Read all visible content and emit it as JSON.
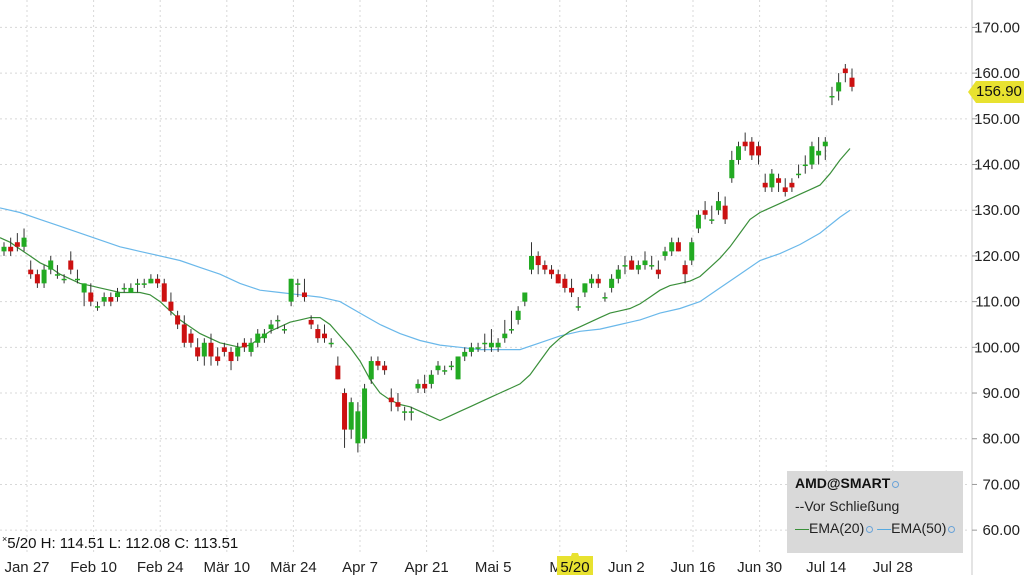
{
  "chart_data": {
    "type": "candlestick",
    "symbol": "AMD@SMART",
    "x_tick_labels": [
      "Jan 27",
      "Feb 10",
      "Feb 24",
      "Mär 10",
      "Mär 24",
      "Apr 7",
      "Apr 21",
      "Mai 5",
      "Ma",
      "Jun 2",
      "Jun 16",
      "Jun 30",
      "Jul 14",
      "Jul 28"
    ],
    "cursor_x_label": "5/20",
    "y_tick_labels": [
      "170.00",
      "160.00",
      "150.00",
      "140.00",
      "130.00",
      "120.00",
      "110.00",
      "100.00",
      "90.00",
      "80.00",
      "70.00",
      "60.00"
    ],
    "ylim": [
      55,
      176
    ],
    "last_price_label": "156.90",
    "ohlc_readout": "5/20 H: 114.51 L: 112.08 C: 113.51",
    "legend": {
      "title": "AMD@SMART",
      "line2": "--Vor Schließung",
      "ema20": "EMA(20)",
      "ema50": "EMA(50)"
    },
    "colors": {
      "up": "#22aa22",
      "down": "#cc1111",
      "ema20": "#3a8f3a",
      "ema50": "#6ab8ea",
      "grid": "#d8d8d8",
      "price_tag": "#e8e230"
    },
    "candles": [
      [
        121,
        123,
        120,
        122
      ],
      [
        122,
        124,
        120,
        121
      ],
      [
        123,
        125,
        121,
        122
      ],
      [
        122,
        126,
        121,
        124
      ],
      [
        117,
        119,
        115,
        116
      ],
      [
        116,
        117,
        113,
        114
      ],
      [
        114,
        118,
        113,
        117
      ],
      [
        117,
        120,
        116,
        119
      ],
      [
        116,
        118,
        115,
        116
      ],
      [
        115,
        116,
        114,
        115
      ],
      [
        119,
        121,
        116,
        117
      ],
      [
        115,
        117,
        114,
        115
      ],
      [
        112,
        114,
        109,
        114
      ],
      [
        112,
        114,
        109,
        110
      ],
      [
        109,
        110,
        108,
        109
      ],
      [
        110,
        112,
        109,
        111
      ],
      [
        111,
        112,
        109,
        110
      ],
      [
        111,
        113,
        110,
        112
      ],
      [
        113,
        114,
        112,
        113
      ],
      [
        112,
        114,
        112,
        113
      ],
      [
        114,
        115,
        112,
        114
      ],
      [
        114,
        115,
        113,
        114
      ],
      [
        114,
        116,
        114,
        115
      ],
      [
        115,
        116,
        113,
        114
      ],
      [
        114,
        115,
        110,
        110
      ],
      [
        110,
        112,
        107,
        108
      ],
      [
        107,
        108,
        104,
        105
      ],
      [
        105,
        107,
        100,
        101
      ],
      [
        103,
        104,
        100,
        101
      ],
      [
        100,
        102,
        97,
        98
      ],
      [
        98,
        102,
        96,
        101
      ],
      [
        101,
        103,
        96,
        98
      ],
      [
        98,
        100,
        96,
        97
      ],
      [
        100,
        101,
        98,
        99
      ],
      [
        99,
        100,
        95,
        97
      ],
      [
        98,
        101,
        97,
        100
      ],
      [
        101,
        102,
        99,
        100
      ],
      [
        99,
        102,
        98,
        101
      ],
      [
        101,
        104,
        100,
        103
      ],
      [
        102,
        104,
        101,
        103
      ],
      [
        104,
        106,
        103,
        105
      ],
      [
        106,
        107,
        104,
        106
      ],
      [
        104,
        105,
        103,
        104
      ],
      [
        110,
        115,
        109,
        115
      ],
      [
        114,
        115,
        111,
        114
      ],
      [
        112,
        115,
        110,
        111
      ],
      [
        106,
        107,
        104,
        105
      ],
      [
        104,
        105,
        101,
        102
      ],
      [
        103,
        105,
        101,
        102
      ],
      [
        101,
        102,
        100,
        101
      ],
      [
        96,
        98,
        93,
        93
      ],
      [
        90,
        91,
        78,
        82
      ],
      [
        82,
        89,
        80,
        88
      ],
      [
        79,
        88,
        77,
        86
      ],
      [
        80,
        92,
        79,
        91
      ],
      [
        93,
        98,
        92,
        97
      ],
      [
        97,
        98,
        95,
        96
      ],
      [
        96,
        97,
        94,
        95
      ],
      [
        89,
        91,
        86,
        88
      ],
      [
        88,
        90,
        86,
        87
      ],
      [
        86,
        87,
        84,
        86
      ],
      [
        86,
        87,
        84,
        86
      ],
      [
        91,
        93,
        90,
        92
      ],
      [
        92,
        94,
        90,
        91
      ],
      [
        92,
        95,
        91,
        94
      ],
      [
        95,
        97,
        94,
        96
      ],
      [
        95,
        96,
        94,
        95
      ],
      [
        96,
        97,
        95,
        96
      ],
      [
        93,
        98,
        93,
        98
      ],
      [
        98,
        100,
        97,
        99
      ],
      [
        99,
        101,
        98,
        100
      ],
      [
        100,
        101,
        99,
        100
      ],
      [
        101,
        103,
        99,
        101
      ],
      [
        100,
        104,
        99,
        101
      ],
      [
        100,
        102,
        99,
        101
      ],
      [
        102,
        106,
        101,
        103
      ],
      [
        104,
        108,
        103,
        104
      ],
      [
        106,
        109,
        105,
        108
      ],
      [
        110,
        112,
        109,
        112
      ],
      [
        117,
        123,
        116,
        120
      ],
      [
        120,
        121,
        116,
        118
      ],
      [
        118,
        119,
        116,
        117
      ],
      [
        117,
        118,
        115,
        116
      ],
      [
        116,
        117,
        114,
        114
      ],
      [
        115,
        116,
        112,
        113
      ],
      [
        113,
        115,
        111,
        112
      ],
      [
        109,
        111,
        108,
        109
      ],
      [
        112,
        114,
        111,
        114
      ],
      [
        114,
        116,
        113,
        115
      ],
      [
        115,
        116,
        113,
        114
      ],
      [
        111,
        112,
        110,
        111
      ],
      [
        113,
        116,
        112,
        115
      ],
      [
        115,
        118,
        114,
        117
      ],
      [
        118,
        120,
        116,
        118
      ],
      [
        119,
        120,
        117,
        117
      ],
      [
        117,
        119,
        116,
        118
      ],
      [
        118,
        121,
        117,
        119
      ],
      [
        118,
        120,
        117,
        118
      ],
      [
        117,
        119,
        115,
        116
      ],
      [
        120,
        122,
        119,
        121
      ],
      [
        121,
        124,
        120,
        123
      ],
      [
        123,
        124,
        121,
        121
      ],
      [
        118,
        119,
        114,
        116
      ],
      [
        119,
        124,
        118,
        123
      ],
      [
        126,
        130,
        125,
        129
      ],
      [
        130,
        132,
        128,
        129
      ],
      [
        128,
        131,
        127,
        128
      ],
      [
        130,
        134,
        129,
        132
      ],
      [
        131,
        133,
        127,
        128
      ],
      [
        137,
        143,
        136,
        141
      ],
      [
        141,
        145,
        140,
        144
      ],
      [
        145,
        147,
        143,
        144
      ],
      [
        145,
        146,
        141,
        142
      ],
      [
        144,
        145,
        140,
        142
      ],
      [
        136,
        138,
        134,
        135
      ],
      [
        135,
        139,
        134,
        138
      ],
      [
        137,
        138,
        134,
        136
      ],
      [
        135,
        137,
        133,
        134
      ],
      [
        136,
        137,
        134,
        135
      ],
      [
        138,
        140,
        137,
        138
      ],
      [
        140,
        142,
        138,
        140
      ],
      [
        140,
        145,
        139,
        144
      ],
      [
        142,
        146,
        140,
        143
      ],
      [
        144,
        146,
        141,
        145
      ],
      [
        155,
        157,
        153,
        155
      ],
      [
        156,
        160,
        154,
        158
      ],
      [
        161,
        162,
        158,
        160
      ],
      [
        159,
        161,
        156,
        157
      ]
    ],
    "ema20": [
      [
        0,
        124
      ],
      [
        10,
        123
      ],
      [
        20,
        121.5
      ],
      [
        30,
        120
      ],
      [
        40,
        118.5
      ],
      [
        50,
        117.5
      ],
      [
        60,
        116
      ],
      [
        70,
        115
      ],
      [
        80,
        114
      ],
      [
        90,
        113.5
      ],
      [
        100,
        113
      ],
      [
        110,
        112.5
      ],
      [
        120,
        112
      ],
      [
        130,
        112
      ],
      [
        140,
        112
      ],
      [
        150,
        111.5
      ],
      [
        160,
        110
      ],
      [
        170,
        108
      ],
      [
        180,
        106
      ],
      [
        190,
        104.5
      ],
      [
        200,
        103
      ],
      [
        210,
        102
      ],
      [
        220,
        101
      ],
      [
        230,
        100.5
      ],
      [
        240,
        100
      ],
      [
        250,
        100.5
      ],
      [
        260,
        102
      ],
      [
        270,
        103.5
      ],
      [
        280,
        104.5
      ],
      [
        290,
        105.5
      ],
      [
        300,
        106
      ],
      [
        310,
        106.5
      ],
      [
        320,
        106.5
      ],
      [
        330,
        105
      ],
      [
        340,
        102.5
      ],
      [
        350,
        100
      ],
      [
        360,
        97
      ],
      [
        370,
        93
      ],
      [
        380,
        90
      ],
      [
        390,
        88.5
      ],
      [
        400,
        87.5
      ],
      [
        410,
        87
      ],
      [
        420,
        86
      ],
      [
        430,
        85
      ],
      [
        440,
        84
      ],
      [
        450,
        85
      ],
      [
        460,
        86
      ],
      [
        470,
        87
      ],
      [
        480,
        88
      ],
      [
        490,
        89
      ],
      [
        500,
        90
      ],
      [
        510,
        91
      ],
      [
        520,
        92
      ],
      [
        530,
        94
      ],
      [
        540,
        97
      ],
      [
        550,
        100
      ],
      [
        560,
        102
      ],
      [
        570,
        103.5
      ],
      [
        580,
        104.5
      ],
      [
        590,
        105.5
      ],
      [
        600,
        106.5
      ],
      [
        610,
        107.5
      ],
      [
        620,
        108
      ],
      [
        630,
        108.5
      ],
      [
        640,
        109.5
      ],
      [
        650,
        111
      ],
      [
        660,
        112.5
      ],
      [
        670,
        113.5
      ],
      [
        680,
        114
      ],
      [
        690,
        114.5
      ],
      [
        700,
        115.5
      ],
      [
        710,
        117.5
      ],
      [
        720,
        119.5
      ],
      [
        730,
        122
      ],
      [
        740,
        125
      ],
      [
        750,
        128
      ],
      [
        760,
        129.5
      ],
      [
        770,
        130.5
      ],
      [
        780,
        131.5
      ],
      [
        790,
        132.5
      ],
      [
        800,
        133.5
      ],
      [
        810,
        134.5
      ],
      [
        820,
        135.5
      ],
      [
        830,
        138
      ],
      [
        840,
        141
      ],
      [
        850,
        143.5
      ]
    ],
    "ema50": [
      [
        0,
        130.5
      ],
      [
        20,
        129.5
      ],
      [
        40,
        128
      ],
      [
        60,
        126.5
      ],
      [
        80,
        125
      ],
      [
        100,
        123.5
      ],
      [
        120,
        122
      ],
      [
        140,
        121
      ],
      [
        160,
        120
      ],
      [
        180,
        119
      ],
      [
        200,
        117.5
      ],
      [
        220,
        116
      ],
      [
        240,
        114
      ],
      [
        260,
        112.5
      ],
      [
        280,
        112
      ],
      [
        300,
        111.5
      ],
      [
        320,
        111
      ],
      [
        340,
        110
      ],
      [
        360,
        107.5
      ],
      [
        380,
        105
      ],
      [
        400,
        103
      ],
      [
        420,
        101.5
      ],
      [
        440,
        100.5
      ],
      [
        460,
        100
      ],
      [
        480,
        99.5
      ],
      [
        500,
        99.5
      ],
      [
        520,
        99.5
      ],
      [
        540,
        101
      ],
      [
        560,
        102.5
      ],
      [
        580,
        103.5
      ],
      [
        600,
        104
      ],
      [
        620,
        105
      ],
      [
        640,
        106
      ],
      [
        660,
        107.5
      ],
      [
        680,
        108.5
      ],
      [
        700,
        110
      ],
      [
        720,
        113
      ],
      [
        740,
        116
      ],
      [
        760,
        119
      ],
      [
        780,
        120.5
      ],
      [
        800,
        122.5
      ],
      [
        820,
        125
      ],
      [
        840,
        128.5
      ],
      [
        850,
        130
      ]
    ]
  }
}
